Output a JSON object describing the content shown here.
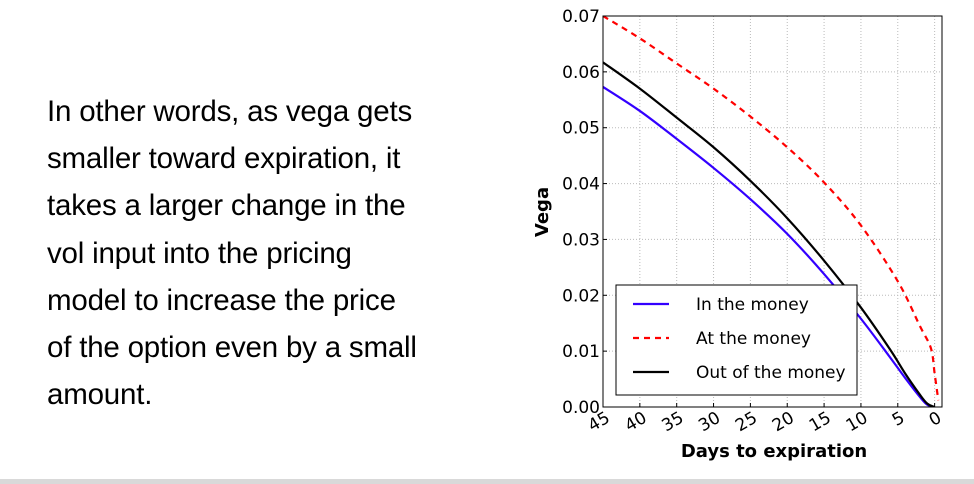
{
  "slide": {
    "body_lines": [
      "In other words, as vega gets",
      "smaller toward expiration, it",
      "takes a larger change in the",
      "vol input into the pricing",
      "model to increase the price",
      "of the option even by a small",
      "amount."
    ]
  },
  "chart_data": {
    "type": "line",
    "title": "",
    "xlabel": "Days to expiration",
    "ylabel": "Vega",
    "xlim": [
      45,
      -1
    ],
    "ylim": [
      0,
      0.07
    ],
    "x_ticks": [
      "45",
      "40",
      "35",
      "30",
      "25",
      "20",
      "15",
      "10",
      "5",
      "0"
    ],
    "x_tick_values": [
      45,
      40,
      35,
      30,
      25,
      20,
      15,
      10,
      5,
      0
    ],
    "y_ticks": [
      "0.00",
      "0.01",
      "0.02",
      "0.03",
      "0.04",
      "0.05",
      "0.06",
      "0.07"
    ],
    "y_tick_values": [
      0,
      0.01,
      0.02,
      0.03,
      0.04,
      0.05,
      0.06,
      0.07
    ],
    "grid": true,
    "legend_position": "lower-left",
    "series": [
      {
        "name": "In the money",
        "color": "#3300ff",
        "style": "solid",
        "x": [
          45,
          40,
          35,
          30,
          25,
          20,
          15,
          10,
          6,
          4,
          2,
          1,
          0
        ],
        "y": [
          0.0573,
          0.053,
          0.048,
          0.0428,
          0.0372,
          0.031,
          0.0238,
          0.0158,
          0.0088,
          0.0052,
          0.0018,
          0.0004,
          0.0
        ]
      },
      {
        "name": "At the money",
        "color": "#ff0000",
        "style": "dashed",
        "x": [
          45,
          40,
          35,
          30,
          25,
          20,
          15,
          10,
          5,
          2,
          0.5,
          0,
          -0.5
        ],
        "y": [
          0.07,
          0.066,
          0.0615,
          0.057,
          0.052,
          0.0465,
          0.0402,
          0.0325,
          0.0225,
          0.0145,
          0.0105,
          0.006,
          0.0012
        ]
      },
      {
        "name": "Out of the money",
        "color": "#000000",
        "style": "solid",
        "x": [
          45,
          40,
          35,
          30,
          25,
          20,
          15,
          10,
          6,
          4,
          2,
          1,
          0
        ],
        "y": [
          0.0617,
          0.057,
          0.0518,
          0.0465,
          0.0405,
          0.0338,
          0.0262,
          0.0178,
          0.0102,
          0.006,
          0.0022,
          0.0006,
          0.0
        ]
      }
    ]
  }
}
